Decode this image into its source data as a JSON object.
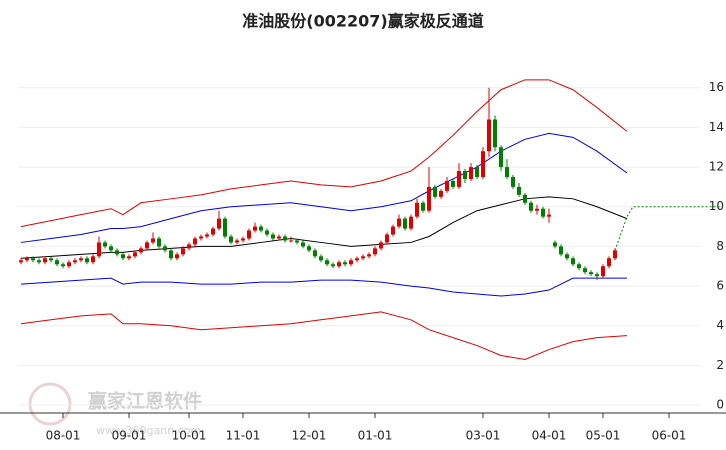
{
  "chart_data": {
    "type": "candlestick",
    "title": "准油股份(002207)赢家极反通道",
    "categories": [
      null,
      null,
      null,
      null,
      null,
      null,
      null,
      "08-01",
      null,
      null,
      null,
      null,
      null,
      null,
      null,
      null,
      null,
      null,
      "09-01",
      null,
      null,
      null,
      null,
      null,
      null,
      null,
      null,
      null,
      "10-01",
      null,
      null,
      null,
      null,
      null,
      null,
      null,
      null,
      "11-01",
      null,
      null,
      null,
      null,
      null,
      null,
      null,
      null,
      null,
      null,
      "12-01",
      null,
      null,
      null,
      null,
      null,
      null,
      null,
      null,
      null,
      null,
      "01-01",
      null,
      null,
      null,
      null,
      null,
      null,
      null,
      null,
      null,
      null,
      null,
      null,
      null,
      null,
      null,
      null,
      null,
      "03-01",
      null,
      null,
      null,
      null,
      null,
      null,
      null,
      null,
      null,
      null,
      "04-01",
      null,
      null,
      null,
      null,
      null,
      null,
      null,
      null,
      "05-01",
      null,
      null,
      null,
      null,
      null,
      null,
      null,
      null,
      null,
      null,
      "06-01",
      null,
      null,
      null,
      null,
      null,
      null,
      null,
      null,
      null
    ],
    "values": [
      [
        7.2,
        7.4,
        7.1,
        7.3
      ],
      [
        7.3,
        7.5,
        7.2,
        7.4
      ],
      [
        7.4,
        7.5,
        7.2,
        7.3
      ],
      [
        7.3,
        7.4,
        7.1,
        7.2
      ],
      [
        7.2,
        7.5,
        7.1,
        7.4
      ],
      [
        7.4,
        7.5,
        7.2,
        7.3
      ],
      [
        7.3,
        7.4,
        7.0,
        7.1
      ],
      [
        7.1,
        7.2,
        6.9,
        7.0
      ],
      [
        7.0,
        7.3,
        6.9,
        7.2
      ],
      [
        7.2,
        7.4,
        7.1,
        7.3
      ],
      [
        7.3,
        7.5,
        7.2,
        7.4
      ],
      [
        7.4,
        7.5,
        7.1,
        7.2
      ],
      [
        7.2,
        7.6,
        7.1,
        7.5
      ],
      [
        7.5,
        8.5,
        7.4,
        8.2
      ],
      [
        8.2,
        8.3,
        7.9,
        8.0
      ],
      [
        8.0,
        8.1,
        7.7,
        7.8
      ],
      [
        7.8,
        7.9,
        7.5,
        7.6
      ],
      [
        7.6,
        7.7,
        7.3,
        7.4
      ],
      [
        7.4,
        7.6,
        7.3,
        7.5
      ],
      [
        7.5,
        7.8,
        7.4,
        7.7
      ],
      [
        7.7,
        8.0,
        7.6,
        7.9
      ],
      [
        7.9,
        8.3,
        7.8,
        8.2
      ],
      [
        8.2,
        8.7,
        8.1,
        8.4
      ],
      [
        8.4,
        8.5,
        7.9,
        8.0
      ],
      [
        8.0,
        8.1,
        7.7,
        7.8
      ],
      [
        7.8,
        7.9,
        7.3,
        7.4
      ],
      [
        7.4,
        7.7,
        7.3,
        7.6
      ],
      [
        7.6,
        8.0,
        7.5,
        7.9
      ],
      [
        7.9,
        8.2,
        7.8,
        8.1
      ],
      [
        8.1,
        8.5,
        8.0,
        8.4
      ],
      [
        8.4,
        8.6,
        8.3,
        8.5
      ],
      [
        8.5,
        8.7,
        8.4,
        8.6
      ],
      [
        8.6,
        9.0,
        8.5,
        8.9
      ],
      [
        8.9,
        9.8,
        8.8,
        9.4
      ],
      [
        9.4,
        9.5,
        8.4,
        8.5
      ],
      [
        8.5,
        8.6,
        8.1,
        8.2
      ],
      [
        8.2,
        8.4,
        8.1,
        8.3
      ],
      [
        8.3,
        8.5,
        8.2,
        8.4
      ],
      [
        8.4,
        8.9,
        8.3,
        8.8
      ],
      [
        8.8,
        9.2,
        8.7,
        9.0
      ],
      [
        9.0,
        9.1,
        8.7,
        8.8
      ],
      [
        8.8,
        8.9,
        8.5,
        8.6
      ],
      [
        8.6,
        8.7,
        8.3,
        8.4
      ],
      [
        8.4,
        8.6,
        8.3,
        8.5
      ],
      [
        8.5,
        8.6,
        8.2,
        8.3
      ],
      [
        8.3,
        8.5,
        8.2,
        8.3
      ],
      [
        8.3,
        8.4,
        8.1,
        8.2
      ],
      [
        8.2,
        8.3,
        7.9,
        8.0
      ],
      [
        8.0,
        8.1,
        7.7,
        7.8
      ],
      [
        7.8,
        7.9,
        7.4,
        7.5
      ],
      [
        7.5,
        7.6,
        7.2,
        7.3
      ],
      [
        7.3,
        7.4,
        7.0,
        7.1
      ],
      [
        7.1,
        7.2,
        6.9,
        7.0
      ],
      [
        7.0,
        7.3,
        6.9,
        7.2
      ],
      [
        7.2,
        7.3,
        7.0,
        7.1
      ],
      [
        7.1,
        7.4,
        7.0,
        7.3
      ],
      [
        7.3,
        7.5,
        7.2,
        7.4
      ],
      [
        7.4,
        7.6,
        7.3,
        7.5
      ],
      [
        7.5,
        7.7,
        7.4,
        7.6
      ],
      [
        7.6,
        8.0,
        7.5,
        7.9
      ],
      [
        7.9,
        8.3,
        7.8,
        8.2
      ],
      [
        8.2,
        8.7,
        8.1,
        8.6
      ],
      [
        8.6,
        9.1,
        8.5,
        9.0
      ],
      [
        9.0,
        9.6,
        8.9,
        9.4
      ],
      [
        9.4,
        9.5,
        8.8,
        8.9
      ],
      [
        8.9,
        9.6,
        8.8,
        9.5
      ],
      [
        9.5,
        10.4,
        9.4,
        10.2
      ],
      [
        10.2,
        10.3,
        9.7,
        9.8
      ],
      [
        9.8,
        12.0,
        9.7,
        11.0
      ],
      [
        11.0,
        11.1,
        10.4,
        10.5
      ],
      [
        10.5,
        10.9,
        10.4,
        10.8
      ],
      [
        10.8,
        11.5,
        10.7,
        11.3
      ],
      [
        11.3,
        11.4,
        10.9,
        11.0
      ],
      [
        11.0,
        12.2,
        10.9,
        11.8
      ],
      [
        11.8,
        11.9,
        11.2,
        11.4
      ],
      [
        11.4,
        12.2,
        11.3,
        12.0
      ],
      [
        12.0,
        12.1,
        11.4,
        11.5
      ],
      [
        11.5,
        13.0,
        11.4,
        12.8
      ],
      [
        12.8,
        16.0,
        12.5,
        14.4
      ],
      [
        14.4,
        14.6,
        12.8,
        13.0
      ],
      [
        13.0,
        13.1,
        11.8,
        12.0
      ],
      [
        12.0,
        12.4,
        11.4,
        11.5
      ],
      [
        11.5,
        11.6,
        10.9,
        11.0
      ],
      [
        11.0,
        11.2,
        10.5,
        10.6
      ],
      [
        10.6,
        10.7,
        10.1,
        10.2
      ],
      [
        10.2,
        10.3,
        9.7,
        9.8
      ],
      [
        9.8,
        10.1,
        9.6,
        9.9
      ],
      [
        9.9,
        10.0,
        9.4,
        9.5
      ],
      [
        9.5,
        9.9,
        9.2,
        9.6
      ],
      [
        8.2,
        8.3,
        7.9,
        8.0
      ],
      [
        8.0,
        8.1,
        7.5,
        7.6
      ],
      [
        7.6,
        7.7,
        7.3,
        7.4
      ],
      [
        7.4,
        7.5,
        7.0,
        7.1
      ],
      [
        7.1,
        7.2,
        6.8,
        6.9
      ],
      [
        6.9,
        7.0,
        6.6,
        6.7
      ],
      [
        6.7,
        6.8,
        6.5,
        6.6
      ],
      [
        6.6,
        6.7,
        6.3,
        6.5
      ],
      [
        6.5,
        7.1,
        6.4,
        7.0
      ],
      [
        7.0,
        7.5,
        6.9,
        7.4
      ],
      [
        7.4,
        7.9,
        7.3,
        7.8
      ],
      null,
      null,
      null,
      null,
      null,
      null,
      null,
      null,
      null,
      null,
      null,
      null,
      null,
      null,
      null,
      null,
      null,
      null
    ],
    "up_color": "#e00000",
    "down_color": "#008000",
    "ylim": [
      -0.4,
      17.5
    ],
    "yticks": [
      0,
      2,
      4,
      6,
      8,
      10,
      12,
      14,
      16
    ],
    "grid": true,
    "overlays": [
      {
        "type": "line",
        "color": "#e00000",
        "x": [
          0,
          5,
          10,
          15,
          17,
          20,
          25,
          30,
          35,
          40,
          45,
          50,
          55,
          60,
          65,
          68,
          72,
          76,
          80,
          84,
          88,
          92,
          96,
          101
        ],
        "values": [
          9.0,
          9.3,
          9.6,
          9.9,
          9.6,
          10.2,
          10.4,
          10.6,
          10.9,
          11.1,
          11.3,
          11.1,
          11.0,
          11.3,
          11.8,
          12.5,
          13.6,
          14.8,
          15.9,
          16.4,
          16.4,
          15.9,
          15.0,
          13.8
        ]
      },
      {
        "type": "line",
        "color": "#0000e0",
        "x": [
          0,
          5,
          10,
          15,
          17,
          20,
          25,
          30,
          35,
          40,
          45,
          50,
          55,
          60,
          65,
          68,
          72,
          76,
          80,
          84,
          88,
          92,
          96,
          101
        ],
        "values": [
          8.2,
          8.4,
          8.6,
          8.9,
          8.9,
          9.0,
          9.4,
          9.8,
          10.0,
          10.1,
          10.2,
          10.0,
          9.8,
          10.0,
          10.3,
          10.8,
          11.4,
          12.0,
          12.8,
          13.4,
          13.7,
          13.5,
          12.8,
          11.7
        ]
      },
      {
        "type": "line",
        "color": "#000000",
        "x": [
          0,
          5,
          10,
          15,
          17,
          20,
          25,
          30,
          35,
          40,
          45,
          50,
          55,
          60,
          65,
          68,
          72,
          76,
          80,
          84,
          88,
          92,
          96,
          101
        ],
        "values": [
          7.4,
          7.5,
          7.6,
          7.7,
          7.7,
          7.8,
          7.9,
          8.0,
          8.0,
          8.2,
          8.4,
          8.2,
          8.0,
          8.1,
          8.2,
          8.5,
          9.2,
          9.8,
          10.1,
          10.4,
          10.5,
          10.4,
          10.0,
          9.4
        ]
      },
      {
        "type": "line",
        "color": "#0000e0",
        "x": [
          0,
          5,
          10,
          15,
          17,
          20,
          25,
          30,
          35,
          40,
          45,
          50,
          55,
          60,
          65,
          68,
          72,
          76,
          80,
          84,
          88,
          92,
          96,
          101
        ],
        "values": [
          6.1,
          6.2,
          6.3,
          6.4,
          6.1,
          6.2,
          6.2,
          6.1,
          6.1,
          6.2,
          6.2,
          6.3,
          6.3,
          6.2,
          6.0,
          5.9,
          5.7,
          5.6,
          5.5,
          5.6,
          5.8,
          6.4,
          6.4,
          6.4
        ]
      },
      {
        "type": "line",
        "color": "#e00000",
        "x": [
          0,
          5,
          10,
          15,
          17,
          20,
          25,
          30,
          35,
          40,
          45,
          50,
          55,
          60,
          65,
          68,
          72,
          76,
          80,
          84,
          88,
          92,
          96,
          101
        ],
        "values": [
          4.1,
          4.3,
          4.5,
          4.6,
          4.1,
          4.1,
          4.0,
          3.8,
          3.9,
          4.0,
          4.1,
          4.3,
          4.5,
          4.7,
          4.3,
          3.8,
          3.4,
          3.0,
          2.5,
          2.3,
          2.8,
          3.2,
          3.4,
          3.5
        ]
      },
      {
        "type": "line",
        "color": "#008000",
        "dashed": true,
        "x": [
          99,
          101,
          102,
          117
        ],
        "values": [
          7.8,
          9.5,
          10,
          10
        ]
      }
    ]
  },
  "watermark": {
    "brand": "赢家江恩软件",
    "url": "www.360gann.com"
  }
}
